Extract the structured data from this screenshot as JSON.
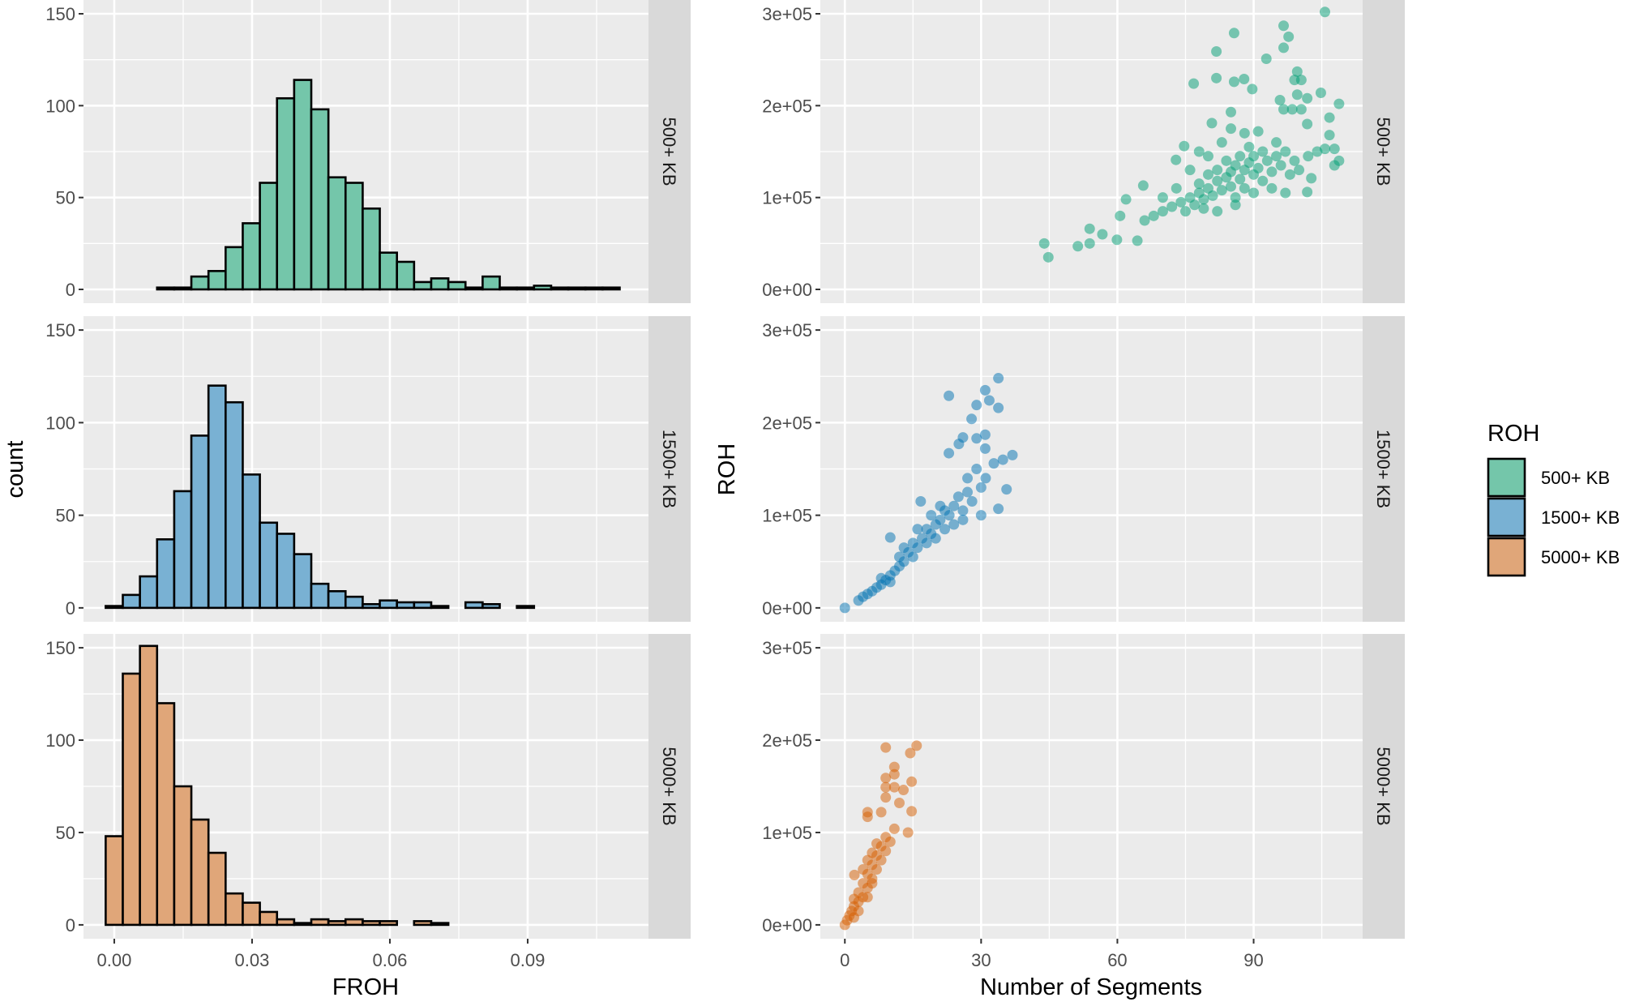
{
  "chart_data": [
    {
      "type": "bar",
      "subtype": "faceted-histogram",
      "xlabel": "FROH",
      "ylabel": "count",
      "xticks": [
        "0.00",
        "0.03",
        "0.06",
        "0.09"
      ],
      "xtick_values": [
        0,
        0.03,
        0.06,
        0.09
      ],
      "yticks": [
        "0",
        "50",
        "100",
        "150"
      ],
      "ytick_values": [
        0,
        50,
        100,
        150
      ],
      "xlim": [
        -0.0067,
        0.1163
      ],
      "ylim": [
        -7.5,
        157.5
      ],
      "bin_start": -0.00187,
      "bin_width": 0.00373,
      "grid": true,
      "facets": [
        {
          "strip": "500+ KB",
          "color": "#74c6aa",
          "values": [
            0,
            0,
            0,
            1,
            1,
            7,
            10,
            23,
            36,
            58,
            104,
            114,
            98,
            61,
            58,
            44,
            20,
            15,
            4,
            6,
            4,
            1,
            7,
            1,
            1,
            2,
            1,
            1,
            1,
            1
          ]
        },
        {
          "strip": "1500+ KB",
          "color": "#79b1d3",
          "values": [
            1,
            7,
            17,
            37,
            63,
            93,
            120,
            111,
            72,
            46,
            40,
            29,
            13,
            9,
            6,
            2,
            4,
            3,
            3,
            1,
            0,
            3,
            2,
            0,
            1,
            0,
            0,
            0,
            0,
            0
          ]
        },
        {
          "strip": "5000+ KB",
          "color": "#e0a679",
          "values": [
            48,
            136,
            151,
            120,
            75,
            57,
            39,
            17,
            12,
            7,
            3,
            1,
            3,
            2,
            3,
            2,
            2,
            0,
            2,
            1,
            0,
            0,
            0,
            0,
            0,
            0,
            0,
            0,
            0,
            0
          ]
        }
      ]
    },
    {
      "type": "scatter",
      "xlabel": "Number of Segments",
      "ylabel": "ROH",
      "xticks": [
        "0",
        "30",
        "60",
        "90"
      ],
      "xtick_values": [
        0,
        30,
        60,
        90
      ],
      "yticks": [
        "0e+00",
        "1e+05",
        "2e+05",
        "3e+05"
      ],
      "ytick_values": [
        0,
        100000,
        200000,
        300000
      ],
      "xlim": [
        -5.4,
        114
      ],
      "ylim": [
        -15000,
        315000
      ],
      "grid": true,
      "legend": {
        "title": "ROH",
        "position": "right",
        "entries": [
          {
            "label": "500+ KB",
            "color": "#74c6aa"
          },
          {
            "label": "1500+ KB",
            "color": "#79b1d3"
          },
          {
            "label": "5000+ KB",
            "color": "#e0a679"
          }
        ]
      },
      "facets": [
        {
          "strip": "500+ KB",
          "color": "#009E73",
          "points": [
            [
              105.7,
              302000
            ],
            [
              96.6,
              287000
            ],
            [
              97.7,
              275000
            ],
            [
              85.7,
              279000
            ],
            [
              81.8,
              259000
            ],
            [
              96.6,
              263000
            ],
            [
              92.8,
              251000
            ],
            [
              99.6,
              237000
            ],
            [
              99,
              228000
            ],
            [
              100.5,
              228000
            ],
            [
              81.8,
              230000
            ],
            [
              85.7,
              226000
            ],
            [
              87.9,
              229000
            ],
            [
              76.8,
              224000
            ],
            [
              89.7,
              218000
            ],
            [
              104.8,
              214000
            ],
            [
              99.6,
              212000
            ],
            [
              101.8,
              208000
            ],
            [
              95.8,
              206000
            ],
            [
              108.8,
              202000
            ],
            [
              96.6,
              196000
            ],
            [
              98.5,
              196000
            ],
            [
              100.5,
              196000
            ],
            [
              106.7,
              187000
            ],
            [
              101.8,
              180000
            ],
            [
              106.7,
              168000
            ],
            [
              107.8,
              153000
            ],
            [
              105.7,
              153000
            ],
            [
              108.8,
              140000
            ],
            [
              107.8,
              135000
            ],
            [
              102.7,
              121000
            ],
            [
              101.8,
              106000
            ],
            [
              44.8,
              35000
            ],
            [
              43.9,
              50000
            ],
            [
              51.3,
              47000
            ],
            [
              53.9,
              50000
            ],
            [
              53.9,
              66000
            ],
            [
              56.7,
              60000
            ],
            [
              59.9,
              54000
            ],
            [
              64.4,
              53000
            ],
            [
              61.9,
              98000
            ],
            [
              65.7,
              113000
            ],
            [
              60.6,
              80000
            ],
            [
              72.9,
              141000
            ],
            [
              74.7,
              156000
            ],
            [
              80.8,
              181000
            ],
            [
              85,
              193000
            ],
            [
              66,
              75000
            ],
            [
              68,
              80000
            ],
            [
              70,
              85000
            ],
            [
              72,
              90000
            ],
            [
              74,
              95000
            ],
            [
              75,
              85000
            ],
            [
              76,
              100000
            ],
            [
              77,
              92000
            ],
            [
              78,
              105000
            ],
            [
              78,
              115000
            ],
            [
              79,
              98000
            ],
            [
              80,
              110000
            ],
            [
              80,
              125000
            ],
            [
              81,
              102000
            ],
            [
              82,
              118000
            ],
            [
              82,
              130000
            ],
            [
              83,
              108000
            ],
            [
              84,
              122000
            ],
            [
              84,
              140000
            ],
            [
              85,
              112000
            ],
            [
              85,
              128000
            ],
            [
              86,
              135000
            ],
            [
              86,
              100000
            ],
            [
              87,
              120000
            ],
            [
              87,
              145000
            ],
            [
              88,
              130000
            ],
            [
              88,
              110000
            ],
            [
              89,
              138000
            ],
            [
              89,
              155000
            ],
            [
              90,
              125000
            ],
            [
              90,
              145000
            ],
            [
              91,
              132000
            ],
            [
              92,
              150000
            ],
            [
              92,
              118000
            ],
            [
              93,
              140000
            ],
            [
              94,
              128000
            ],
            [
              95,
              160000
            ],
            [
              95,
              145000
            ],
            [
              96,
              135000
            ],
            [
              97,
              150000
            ],
            [
              98,
              125000
            ],
            [
              99,
              140000
            ],
            [
              83,
              160000
            ],
            [
              80,
              145000
            ],
            [
              76,
              130000
            ],
            [
              79,
              88000
            ],
            [
              82,
              85000
            ],
            [
              86,
              92000
            ],
            [
              90,
              105000
            ],
            [
              94,
              110000
            ],
            [
              97,
              105000
            ],
            [
              100,
              130000
            ],
            [
              102,
              145000
            ],
            [
              104,
              150000
            ],
            [
              88,
              170000
            ],
            [
              91,
              172000
            ],
            [
              85,
              175000
            ],
            [
              78,
              150000
            ],
            [
              73,
              110000
            ],
            [
              70,
              100000
            ]
          ]
        },
        {
          "strip": "1500+ KB",
          "color": "#0072B2",
          "points": [
            [
              0,
              0
            ],
            [
              33.8,
              248000
            ],
            [
              22.9,
              229000
            ],
            [
              30.9,
              235000
            ],
            [
              31.8,
              224000
            ],
            [
              29,
              219000
            ],
            [
              33.8,
              216000
            ],
            [
              27.9,
              204000
            ],
            [
              30.9,
              187000
            ],
            [
              26,
              184000
            ],
            [
              29,
              183000
            ],
            [
              25.1,
              177000
            ],
            [
              22.9,
              167000
            ],
            [
              30.9,
              172000
            ],
            [
              36.9,
              165000
            ],
            [
              34.8,
              160000
            ],
            [
              32.8,
              156000
            ],
            [
              35.6,
              128000
            ],
            [
              33.8,
              107000
            ],
            [
              10,
              76000
            ],
            [
              16.7,
              115000
            ],
            [
              3,
              8000
            ],
            [
              4,
              12000
            ],
            [
              5,
              15000
            ],
            [
              6,
              18000
            ],
            [
              7,
              22000
            ],
            [
              8,
              25000
            ],
            [
              9,
              30000
            ],
            [
              10,
              35000
            ],
            [
              11,
              40000
            ],
            [
              12,
              45000
            ],
            [
              12,
              55000
            ],
            [
              13,
              50000
            ],
            [
              14,
              60000
            ],
            [
              15,
              55000
            ],
            [
              15,
              70000
            ],
            [
              16,
              65000
            ],
            [
              17,
              75000
            ],
            [
              18,
              70000
            ],
            [
              18,
              85000
            ],
            [
              19,
              80000
            ],
            [
              20,
              90000
            ],
            [
              20,
              75000
            ],
            [
              21,
              95000
            ],
            [
              22,
              85000
            ],
            [
              22,
              105000
            ],
            [
              23,
              100000
            ],
            [
              24,
              110000
            ],
            [
              24,
              90000
            ],
            [
              25,
              120000
            ],
            [
              26,
              105000
            ],
            [
              27,
              125000
            ],
            [
              27,
              140000
            ],
            [
              28,
              115000
            ],
            [
              29,
              150000
            ],
            [
              30,
              130000
            ],
            [
              30,
              100000
            ],
            [
              31,
              140000
            ],
            [
              13,
              65000
            ],
            [
              16,
              85000
            ],
            [
              19,
              100000
            ],
            [
              21,
              110000
            ],
            [
              26,
              95000
            ],
            [
              8,
              32000
            ],
            [
              10,
              28000
            ]
          ]
        },
        {
          "strip": "5000+ KB",
          "color": "#D55E00",
          "points": [
            [
              9,
              192000
            ],
            [
              15.8,
              194000
            ],
            [
              14.4,
              186000
            ],
            [
              10.9,
              171000
            ],
            [
              10.9,
              163000
            ],
            [
              9,
              159000
            ],
            [
              14.7,
              155000
            ],
            [
              9,
              149000
            ],
            [
              10.9,
              149000
            ],
            [
              12.9,
              146000
            ],
            [
              9,
              138000
            ],
            [
              12,
              132000
            ],
            [
              5,
              122000
            ],
            [
              5,
              117000
            ],
            [
              8,
              122000
            ],
            [
              14.7,
              123000
            ],
            [
              13.9,
              100000
            ],
            [
              10.9,
              104000
            ],
            [
              2.1,
              54000
            ],
            [
              0,
              0
            ],
            [
              0.5,
              5000
            ],
            [
              1,
              10000
            ],
            [
              1.5,
              15000
            ],
            [
              2,
              20000
            ],
            [
              2,
              28000
            ],
            [
              3,
              25000
            ],
            [
              3,
              35000
            ],
            [
              4,
              30000
            ],
            [
              4,
              45000
            ],
            [
              4,
              60000
            ],
            [
              5,
              40000
            ],
            [
              5,
              55000
            ],
            [
              5,
              70000
            ],
            [
              6,
              50000
            ],
            [
              6,
              65000
            ],
            [
              6,
              78000
            ],
            [
              7,
              60000
            ],
            [
              7,
              75000
            ],
            [
              7,
              88000
            ],
            [
              8,
              70000
            ],
            [
              8,
              85000
            ],
            [
              9,
              80000
            ],
            [
              9,
              95000
            ],
            [
              10,
              90000
            ],
            [
              3,
              15000
            ],
            [
              2,
              8000
            ],
            [
              5,
              30000
            ],
            [
              6,
              45000
            ]
          ]
        }
      ]
    }
  ]
}
